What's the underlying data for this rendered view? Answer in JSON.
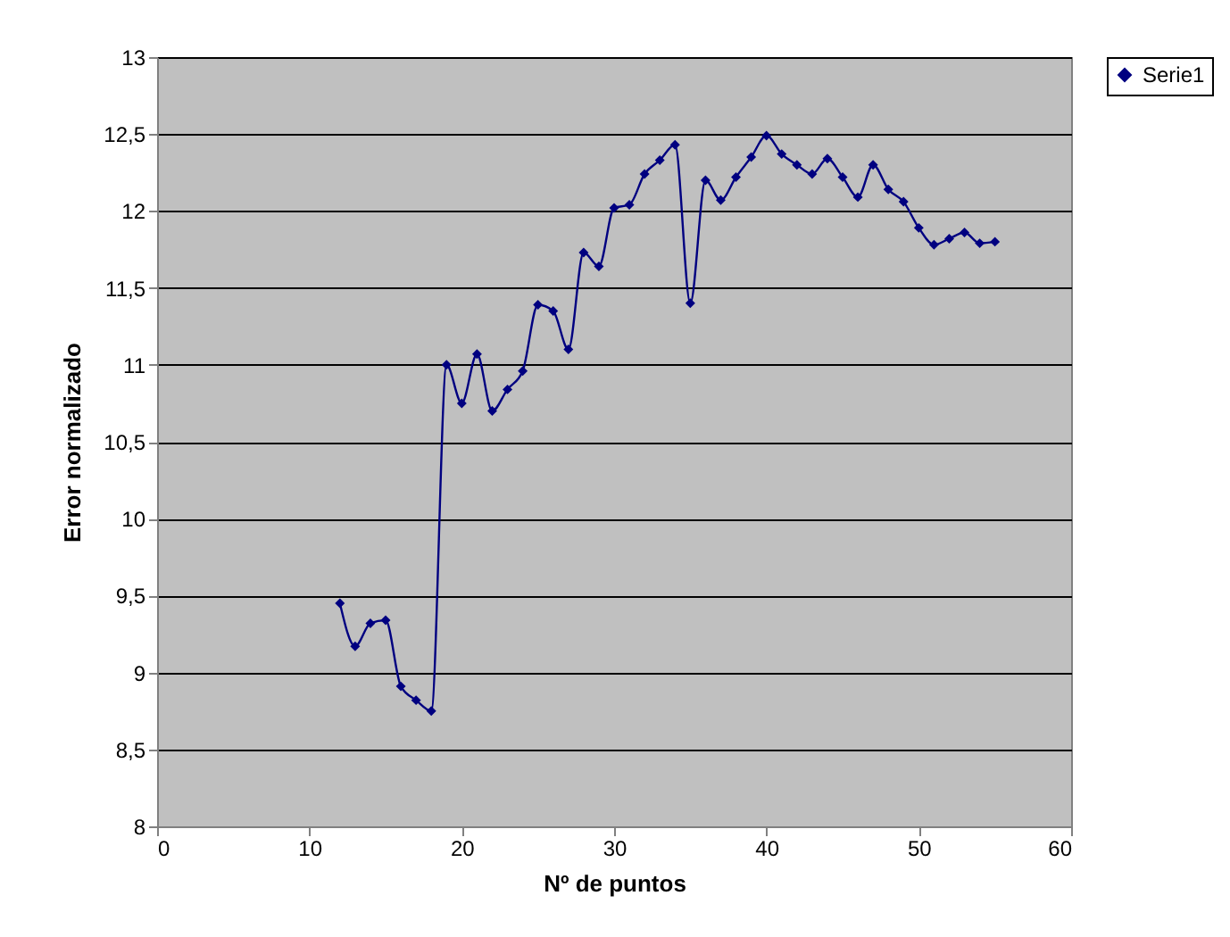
{
  "chart_data": {
    "type": "line",
    "xlabel": "Nº de puntos",
    "ylabel": "Error normalizado",
    "x": [
      12,
      13,
      14,
      15,
      16,
      17,
      18,
      19,
      20,
      21,
      22,
      23,
      24,
      25,
      26,
      27,
      28,
      29,
      30,
      31,
      32,
      33,
      34,
      35,
      36,
      37,
      38,
      39,
      40,
      41,
      42,
      43,
      44,
      45,
      46,
      47,
      48,
      49,
      50,
      51,
      52,
      53,
      54,
      55
    ],
    "series": [
      {
        "name": "Serie1",
        "color": "#000080",
        "values": [
          9.45,
          9.17,
          9.32,
          9.34,
          8.91,
          8.82,
          8.75,
          11.0,
          10.75,
          11.07,
          10.7,
          10.84,
          10.96,
          11.39,
          11.35,
          11.1,
          11.73,
          11.64,
          12.02,
          12.04,
          12.24,
          12.33,
          12.43,
          11.4,
          12.2,
          12.07,
          12.22,
          12.35,
          12.49,
          12.37,
          12.3,
          12.24,
          12.34,
          12.22,
          12.09,
          12.3,
          12.14,
          12.06,
          11.89,
          11.78,
          11.82,
          11.86,
          11.79,
          11.8
        ]
      }
    ],
    "xlim": [
      0,
      60
    ],
    "xticks": [
      0,
      10,
      20,
      30,
      40,
      50,
      60
    ],
    "ylim": [
      8,
      13
    ],
    "yticks": [
      8,
      {
        "value": 8.5,
        "label": "8,5"
      },
      9,
      {
        "value": 9.5,
        "label": "9,5"
      },
      10,
      {
        "value": 10.5,
        "label": "10,5"
      },
      11,
      {
        "value": 11.5,
        "label": "11,5"
      },
      12,
      {
        "value": 12.5,
        "label": "12,5"
      },
      13
    ],
    "grid": "y",
    "legend": "right",
    "marker": "diamond",
    "line_style": "solid"
  }
}
